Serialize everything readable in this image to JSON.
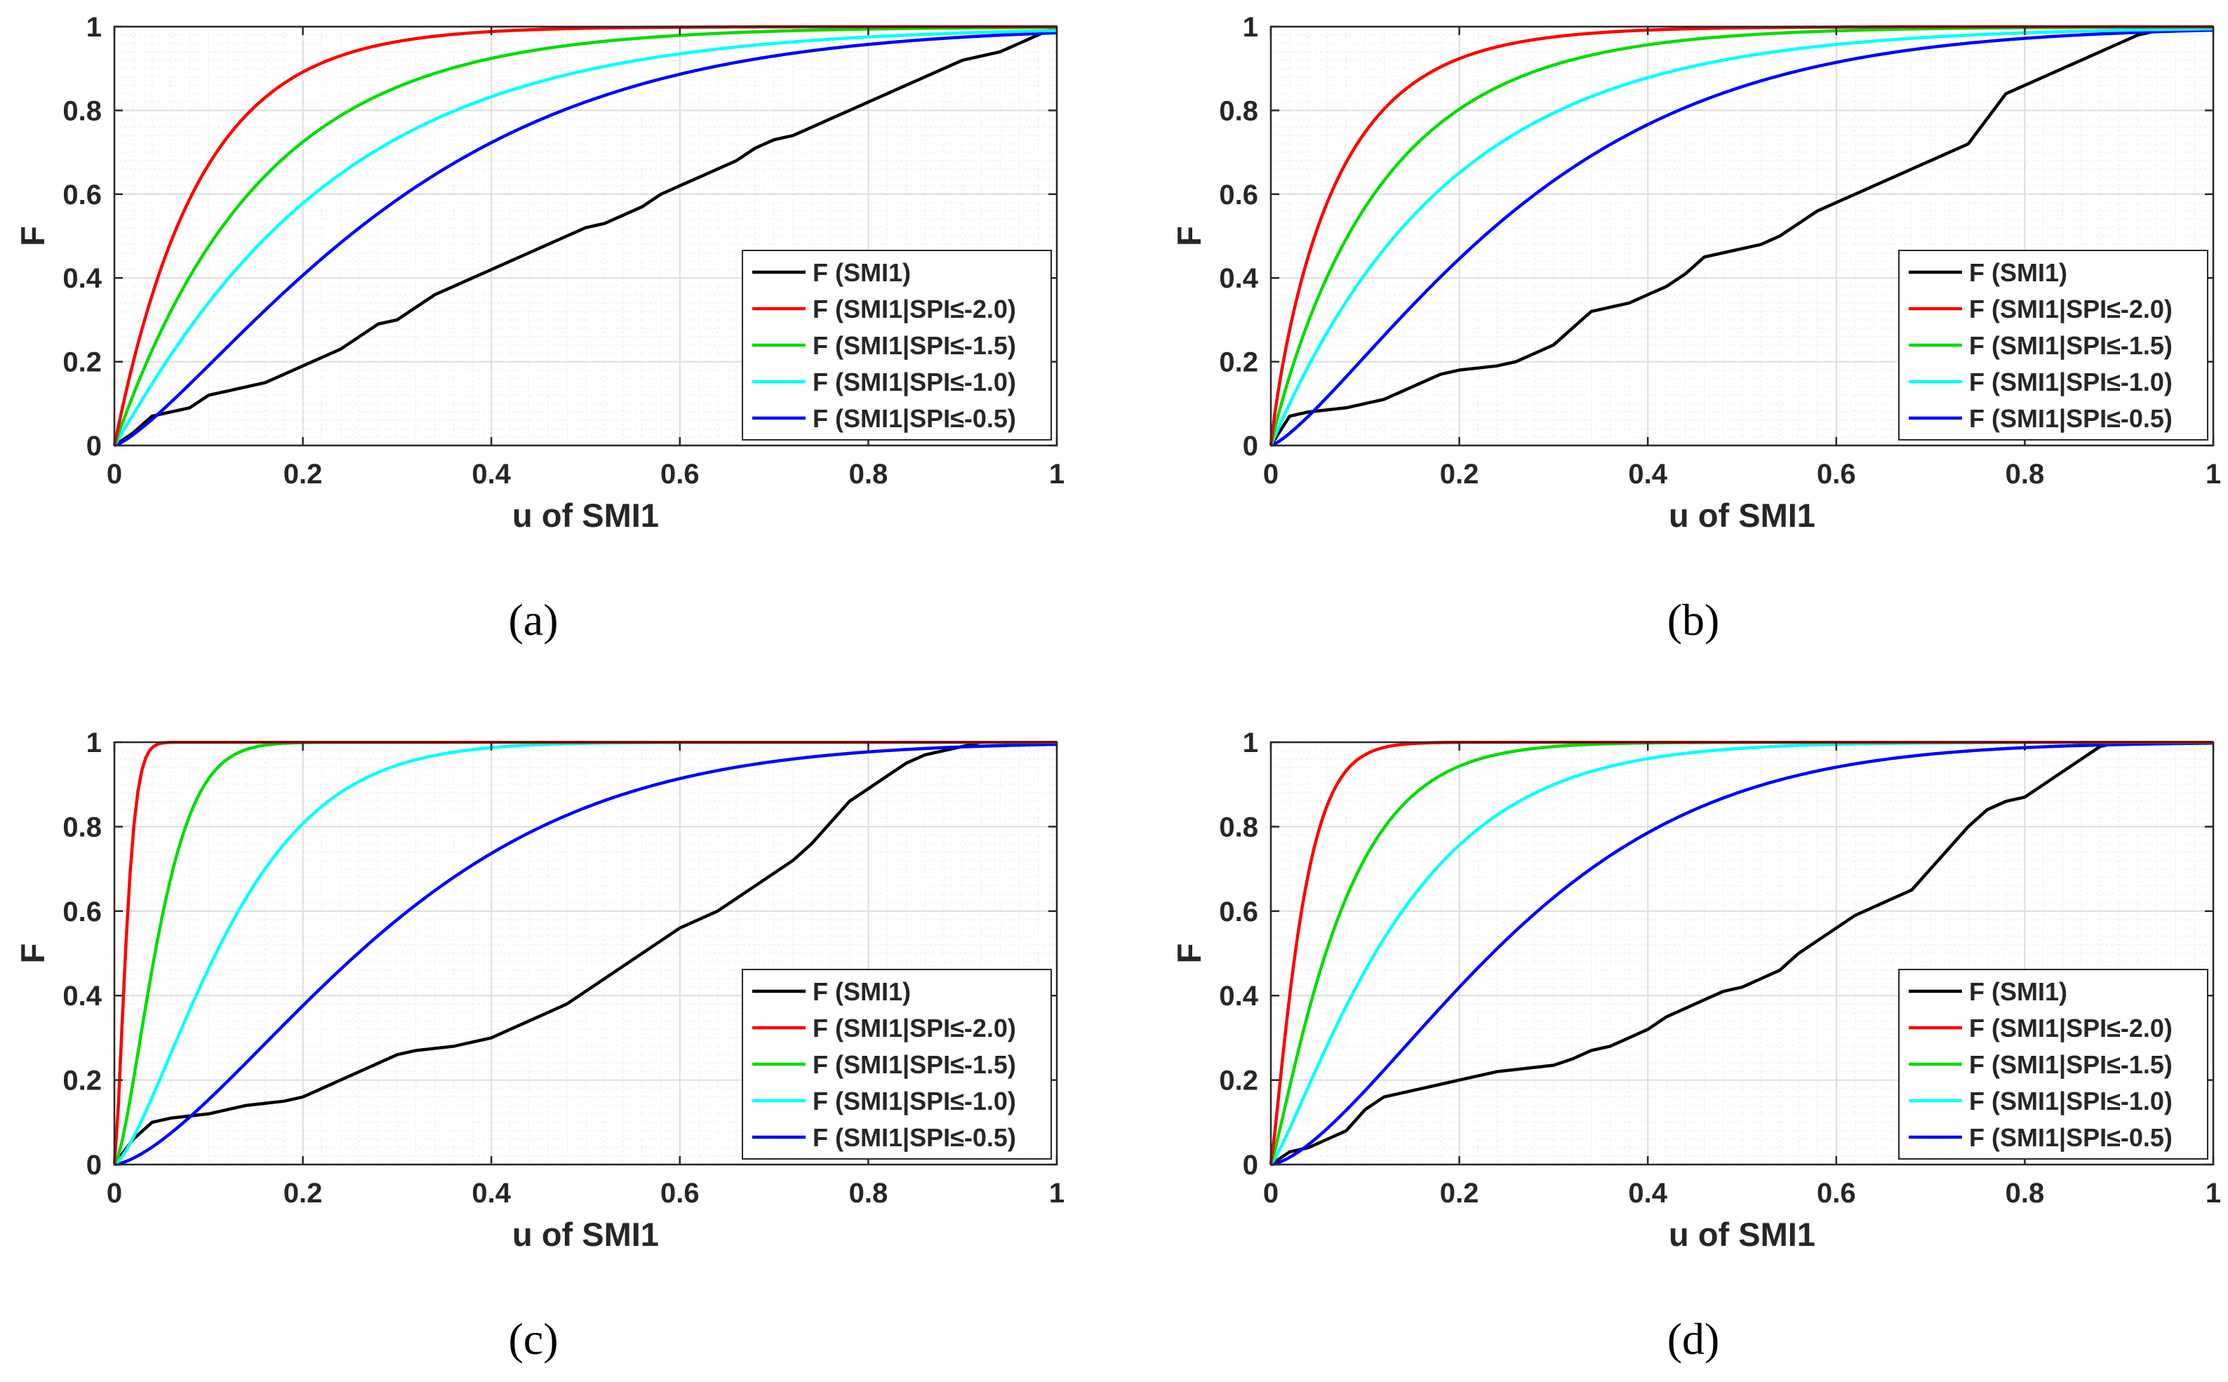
{
  "chart_data": [
    {
      "type": "line",
      "caption": "(a)",
      "xlabel": "u of SMI1",
      "ylabel": "F",
      "xlim": [
        0,
        1
      ],
      "ylim": [
        0,
        1
      ],
      "xticks": [
        "0",
        "0.2",
        "0.4",
        "0.6",
        "0.8",
        "1"
      ],
      "yticks": [
        "0",
        "0.2",
        "0.4",
        "0.6",
        "0.8",
        "1"
      ],
      "grid": true,
      "legend_position": "bottom-right",
      "series": [
        {
          "name": "F (SMI1)",
          "color": "#000000",
          "x": [
            0,
            0.02,
            0.04,
            0.06,
            0.08,
            0.1,
            0.12,
            0.14,
            0.16,
            0.18,
            0.2,
            0.22,
            0.24,
            0.26,
            0.28,
            0.3,
            0.32,
            0.34,
            0.36,
            0.38,
            0.4,
            0.42,
            0.44,
            0.46,
            0.48,
            0.5,
            0.52,
            0.54,
            0.56,
            0.58,
            0.6,
            0.62,
            0.64,
            0.66,
            0.68,
            0.7,
            0.72,
            0.74,
            0.76,
            0.78,
            0.8,
            0.82,
            0.84,
            0.86,
            0.88,
            0.9,
            0.92,
            0.94,
            0.96,
            0.98,
            1
          ],
          "y": [
            0,
            0.03,
            0.07,
            0.08,
            0.09,
            0.12,
            0.13,
            0.14,
            0.15,
            0.17,
            0.19,
            0.21,
            0.23,
            0.26,
            0.29,
            0.3,
            0.33,
            0.36,
            0.38,
            0.4,
            0.42,
            0.44,
            0.46,
            0.48,
            0.5,
            0.52,
            0.53,
            0.55,
            0.57,
            0.6,
            0.62,
            0.64,
            0.66,
            0.68,
            0.71,
            0.73,
            0.74,
            0.76,
            0.78,
            0.8,
            0.82,
            0.84,
            0.86,
            0.88,
            0.9,
            0.92,
            0.93,
            0.94,
            0.96,
            0.98,
            1
          ]
        },
        {
          "name": "F (SMI1|SPI≤-2.0)",
          "color": "#ff0000",
          "k": 0.09,
          "p": 1.0
        },
        {
          "name": "F (SMI1|SPI≤-1.5)",
          "color": "#00dd00",
          "k": 0.155,
          "p": 1.0
        },
        {
          "name": "F (SMI1|SPI≤-1.0)",
          "color": "#00ffff",
          "k": 0.23,
          "p": 1.05
        },
        {
          "name": "F (SMI1|SPI≤-0.5)",
          "color": "#0000ff",
          "k": 0.33,
          "p": 1.3
        }
      ]
    },
    {
      "type": "line",
      "caption": "(b)",
      "xlabel": "u of SMI1",
      "ylabel": "F",
      "xlim": [
        0,
        1
      ],
      "ylim": [
        0,
        1
      ],
      "xticks": [
        "0",
        "0.2",
        "0.4",
        "0.6",
        "0.8",
        "1"
      ],
      "yticks": [
        "0",
        "0.2",
        "0.4",
        "0.6",
        "0.8",
        "1"
      ],
      "grid": true,
      "legend_position": "bottom-right",
      "series": [
        {
          "name": "F (SMI1)",
          "color": "#000000",
          "x": [
            0,
            0.02,
            0.04,
            0.06,
            0.08,
            0.1,
            0.12,
            0.14,
            0.16,
            0.18,
            0.2,
            0.22,
            0.24,
            0.26,
            0.28,
            0.3,
            0.32,
            0.34,
            0.36,
            0.38,
            0.4,
            0.42,
            0.44,
            0.46,
            0.48,
            0.5,
            0.52,
            0.54,
            0.56,
            0.58,
            0.6,
            0.62,
            0.64,
            0.66,
            0.68,
            0.7,
            0.72,
            0.74,
            0.76,
            0.78,
            0.8,
            0.82,
            0.84,
            0.86,
            0.88,
            0.9,
            0.92,
            0.94,
            0.96,
            0.98,
            1
          ],
          "y": [
            0,
            0.07,
            0.08,
            0.085,
            0.09,
            0.1,
            0.11,
            0.13,
            0.15,
            0.17,
            0.18,
            0.185,
            0.19,
            0.2,
            0.22,
            0.24,
            0.28,
            0.32,
            0.33,
            0.34,
            0.36,
            0.38,
            0.41,
            0.45,
            0.46,
            0.47,
            0.48,
            0.5,
            0.53,
            0.56,
            0.58,
            0.6,
            0.62,
            0.64,
            0.66,
            0.68,
            0.7,
            0.72,
            0.78,
            0.84,
            0.86,
            0.88,
            0.9,
            0.92,
            0.94,
            0.96,
            0.98,
            0.99,
            1,
            1,
            1
          ]
        },
        {
          "name": "F (SMI1|SPI≤-2.0)",
          "color": "#ff0000",
          "k": 0.07,
          "p": 0.9
        },
        {
          "name": "F (SMI1|SPI≤-1.5)",
          "color": "#00dd00",
          "k": 0.12,
          "p": 0.95
        },
        {
          "name": "F (SMI1|SPI≤-1.0)",
          "color": "#00ffff",
          "k": 0.19,
          "p": 1.0
        },
        {
          "name": "F (SMI1|SPI≤-0.5)",
          "color": "#0000ff",
          "k": 0.3,
          "p": 1.3
        }
      ]
    },
    {
      "type": "line",
      "caption": "(c)",
      "xlabel": "u of SMI1",
      "ylabel": "F",
      "xlim": [
        0,
        1
      ],
      "ylim": [
        0,
        1
      ],
      "xticks": [
        "0",
        "0.2",
        "0.4",
        "0.6",
        "0.8",
        "1"
      ],
      "yticks": [
        "0",
        "0.2",
        "0.4",
        "0.6",
        "0.8",
        "1"
      ],
      "grid": true,
      "legend_position": "bottom-right",
      "series": [
        {
          "name": "F (SMI1)",
          "color": "#000000",
          "x": [
            0,
            0.02,
            0.04,
            0.06,
            0.08,
            0.1,
            0.12,
            0.14,
            0.16,
            0.18,
            0.2,
            0.22,
            0.24,
            0.26,
            0.28,
            0.3,
            0.32,
            0.34,
            0.36,
            0.38,
            0.4,
            0.42,
            0.44,
            0.46,
            0.48,
            0.5,
            0.52,
            0.54,
            0.56,
            0.58,
            0.6,
            0.62,
            0.64,
            0.66,
            0.68,
            0.7,
            0.72,
            0.74,
            0.76,
            0.78,
            0.8,
            0.82,
            0.84,
            0.86,
            0.88,
            0.9,
            0.92,
            0.94,
            0.96,
            0.98,
            1
          ],
          "y": [
            0,
            0.06,
            0.1,
            0.11,
            0.115,
            0.12,
            0.13,
            0.14,
            0.145,
            0.15,
            0.16,
            0.18,
            0.2,
            0.22,
            0.24,
            0.26,
            0.27,
            0.275,
            0.28,
            0.29,
            0.3,
            0.32,
            0.34,
            0.36,
            0.38,
            0.41,
            0.44,
            0.47,
            0.5,
            0.53,
            0.56,
            0.58,
            0.6,
            0.63,
            0.66,
            0.69,
            0.72,
            0.76,
            0.81,
            0.86,
            0.89,
            0.92,
            0.95,
            0.97,
            0.98,
            0.99,
            1,
            1,
            1,
            1,
            1
          ]
        },
        {
          "name": "F (SMI1|SPI≤-2.0)",
          "color": "#ff0000",
          "k": 0.015,
          "p": 1.5
        },
        {
          "name": "F (SMI1|SPI≤-1.5)",
          "color": "#00dd00",
          "k": 0.055,
          "p": 1.5
        },
        {
          "name": "F (SMI1|SPI≤-1.0)",
          "color": "#00ffff",
          "k": 0.14,
          "p": 1.4
        },
        {
          "name": "F (SMI1|SPI≤-0.5)",
          "color": "#0000ff",
          "k": 0.33,
          "p": 1.5
        }
      ]
    },
    {
      "type": "line",
      "caption": "(d)",
      "xlabel": "u of SMI1",
      "ylabel": "F",
      "xlim": [
        0,
        1
      ],
      "ylim": [
        0,
        1
      ],
      "xticks": [
        "0",
        "0.2",
        "0.4",
        "0.6",
        "0.8",
        "1"
      ],
      "yticks": [
        "0",
        "0.2",
        "0.4",
        "0.6",
        "0.8",
        "1"
      ],
      "grid": true,
      "legend_position": "bottom-right",
      "series": [
        {
          "name": "F (SMI1)",
          "color": "#000000",
          "x": [
            0,
            0.02,
            0.04,
            0.06,
            0.08,
            0.1,
            0.12,
            0.14,
            0.16,
            0.18,
            0.2,
            0.22,
            0.24,
            0.26,
            0.28,
            0.3,
            0.32,
            0.34,
            0.36,
            0.38,
            0.4,
            0.42,
            0.44,
            0.46,
            0.48,
            0.5,
            0.52,
            0.54,
            0.56,
            0.58,
            0.6,
            0.62,
            0.64,
            0.66,
            0.68,
            0.7,
            0.72,
            0.74,
            0.76,
            0.78,
            0.8,
            0.82,
            0.84,
            0.86,
            0.88,
            0.9,
            0.92,
            0.94,
            0.96,
            0.98,
            1
          ],
          "y": [
            0,
            0.03,
            0.04,
            0.06,
            0.08,
            0.13,
            0.16,
            0.17,
            0.18,
            0.19,
            0.2,
            0.21,
            0.22,
            0.225,
            0.23,
            0.235,
            0.25,
            0.27,
            0.28,
            0.3,
            0.32,
            0.35,
            0.37,
            0.39,
            0.41,
            0.42,
            0.44,
            0.46,
            0.5,
            0.53,
            0.56,
            0.59,
            0.61,
            0.63,
            0.65,
            0.7,
            0.75,
            0.8,
            0.84,
            0.86,
            0.87,
            0.9,
            0.93,
            0.96,
            0.99,
            1,
            1,
            1,
            1,
            1,
            1
          ]
        },
        {
          "name": "F (SMI1|SPI≤-2.0)",
          "color": "#ff0000",
          "k": 0.035,
          "p": 1.2
        },
        {
          "name": "F (SMI1|SPI≤-1.5)",
          "color": "#00dd00",
          "k": 0.08,
          "p": 1.15
        },
        {
          "name": "F (SMI1|SPI≤-1.0)",
          "color": "#00ffff",
          "k": 0.15,
          "p": 1.2
        },
        {
          "name": "F (SMI1|SPI≤-0.5)",
          "color": "#0000ff",
          "k": 0.3,
          "p": 1.5
        }
      ]
    }
  ]
}
